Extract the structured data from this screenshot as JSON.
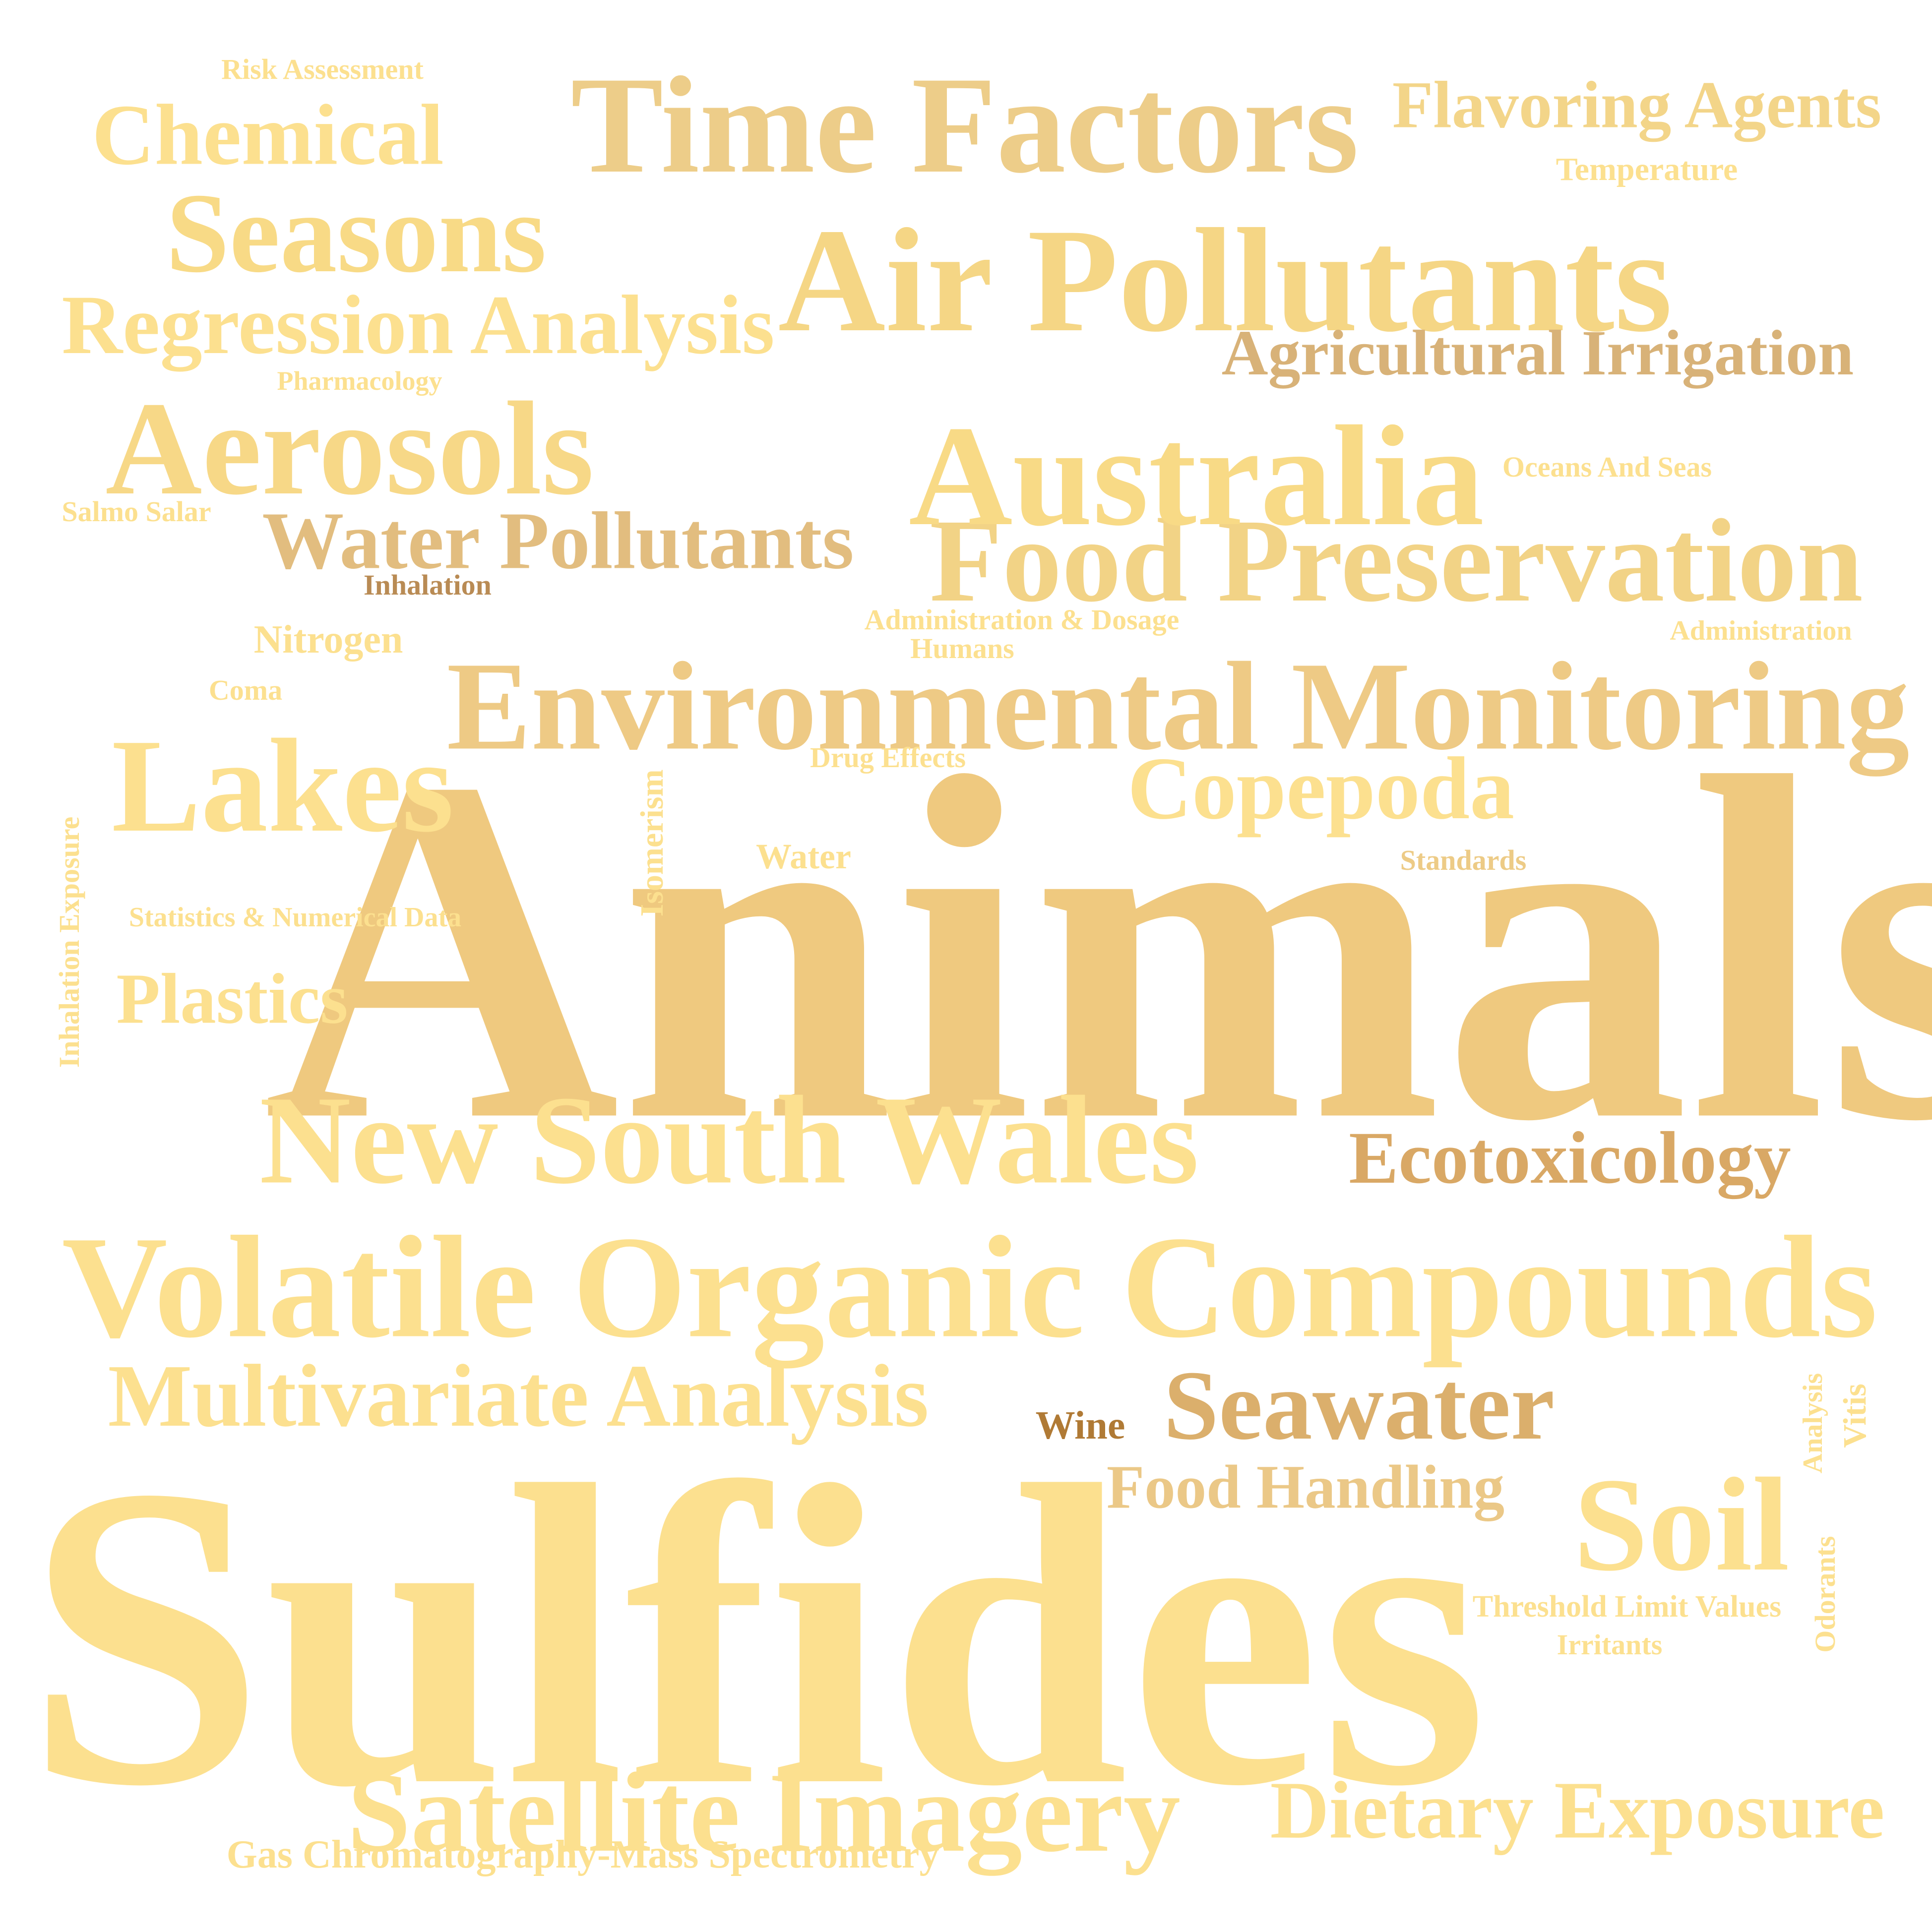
{
  "words": [
    {
      "id": "w-animals",
      "name": "word-animals",
      "text": "Animals",
      "color": "#EFC97F"
    },
    {
      "id": "w-sulfides",
      "name": "word-sulfides",
      "text": "Sulfides",
      "color": "#FCE08F"
    },
    {
      "id": "w-vol",
      "name": "word-volatile-organic-compounds",
      "text": "Volatile Organic Compounds",
      "color": "#FCE08F"
    },
    {
      "id": "w-env",
      "name": "word-environmental-monitoring",
      "text": "Environmental Monitoring",
      "color": "#EECA85"
    },
    {
      "id": "w-air",
      "name": "word-air-pollutants",
      "text": "Air Pollutants",
      "color": "#F5D685"
    },
    {
      "id": "w-time",
      "name": "word-time-factors",
      "text": "Time Factors",
      "color": "#EDCD89"
    },
    {
      "id": "w-nsw",
      "name": "word-new-south-wales",
      "text": "New South Wales",
      "color": "#FCE08F"
    },
    {
      "id": "w-food",
      "name": "word-food-preservation",
      "text": "Food Preservation",
      "color": "#F2D386"
    },
    {
      "id": "w-aust",
      "name": "word-australia",
      "text": "Australia",
      "color": "#F8DA86"
    },
    {
      "id": "w-aero",
      "name": "word-aerosols",
      "text": "Aerosols",
      "color": "#F7D887"
    },
    {
      "id": "w-sat",
      "name": "word-satellite-imagery",
      "text": "Satellite Imagery",
      "color": "#FCE08F"
    },
    {
      "id": "w-lakes",
      "name": "word-lakes",
      "text": "Lakes",
      "color": "#FCE08F"
    },
    {
      "id": "w-seasons",
      "name": "word-seasons",
      "text": "Seasons",
      "color": "#F8DA86"
    },
    {
      "id": "w-reg",
      "name": "word-regression-analysis",
      "text": "Regression Analysis",
      "color": "#FCE08F"
    },
    {
      "id": "w-multi",
      "name": "word-multivariate-analysis",
      "text": "Multivariate Analysis",
      "color": "#FCE08F"
    },
    {
      "id": "w-diet",
      "name": "word-dietary-exposure",
      "text": "Dietary Exposure",
      "color": "#FCE08F"
    },
    {
      "id": "w-soil",
      "name": "word-soil",
      "text": "Soil",
      "color": "#FCE08F"
    },
    {
      "id": "w-chem",
      "name": "word-chemical",
      "text": "Chemical",
      "color": "#FCE08F"
    },
    {
      "id": "w-flav",
      "name": "word-flavoring-agents",
      "text": "Flavoring Agents",
      "color": "#F3D589"
    },
    {
      "id": "w-agri",
      "name": "word-agricultural-irrigation",
      "text": "Agricultural Irrigation",
      "color": "#D8B278"
    },
    {
      "id": "w-water-poll",
      "name": "word-water-pollutants",
      "text": "Water Pollutants",
      "color": "#E2BD7F"
    },
    {
      "id": "w-cope",
      "name": "word-copepoda",
      "text": "Copepoda",
      "color": "#FCE08F"
    },
    {
      "id": "w-plastics",
      "name": "word-plastics",
      "text": "Plastics",
      "color": "#FCE08F"
    },
    {
      "id": "w-seawater",
      "name": "word-seawater",
      "text": "Seawater",
      "color": "#DBAF6C"
    },
    {
      "id": "w-ecotox",
      "name": "word-ecotoxicology",
      "text": "Ecotoxicology",
      "color": "#D9A865"
    },
    {
      "id": "w-foodhand",
      "name": "word-food-handling",
      "text": "Food Handling",
      "color": "#EBC887"
    },
    {
      "id": "w-gcms",
      "name": "word-gas-chromatography-mass-spectrometry",
      "text": "Gas Chromatography-Mass Spectrometry",
      "color": "#FCE08F"
    },
    {
      "id": "w-nitrogen",
      "name": "word-nitrogen",
      "text": "Nitrogen",
      "color": "#FCE08F"
    },
    {
      "id": "w-water",
      "name": "word-water",
      "text": "Water",
      "color": "#FCE08F"
    },
    {
      "id": "w-standards",
      "name": "word-standards",
      "text": "Standards",
      "color": "#EDCB86"
    },
    {
      "id": "w-risk",
      "name": "word-risk-assessment",
      "text": "Risk Assessment",
      "color": "#FCE08F"
    },
    {
      "id": "w-temp",
      "name": "word-temperature",
      "text": "Temperature",
      "color": "#FCE08F"
    },
    {
      "id": "w-pharm",
      "name": "word-pharmacology",
      "text": "Pharmacology",
      "color": "#FCE08F"
    },
    {
      "id": "w-oceans",
      "name": "word-oceans-and-seas",
      "text": "Oceans And Seas",
      "color": "#FCE08F"
    },
    {
      "id": "w-salmo",
      "name": "word-salmo-salar",
      "text": "Salmo Salar",
      "color": "#FCE08F"
    },
    {
      "id": "w-inhal",
      "name": "word-inhalation",
      "text": "Inhalation",
      "color": "#B98B54"
    },
    {
      "id": "w-admdose",
      "name": "word-administration-dosage",
      "text": "Administration & Dosage",
      "color": "#FCE08F"
    },
    {
      "id": "w-humans",
      "name": "word-humans",
      "text": "Humans",
      "color": "#FCE08F"
    },
    {
      "id": "w-admin",
      "name": "word-administration",
      "text": "Administration",
      "color": "#FCE08F"
    },
    {
      "id": "w-coma",
      "name": "word-coma",
      "text": "Coma",
      "color": "#FCE08F"
    },
    {
      "id": "w-drug",
      "name": "word-drug-effects",
      "text": "Drug Effects",
      "color": "#FCE08F"
    },
    {
      "id": "w-stats",
      "name": "word-statistics-numerical-data",
      "text": "Statistics & Numerical Data",
      "color": "#FCE08F"
    },
    {
      "id": "w-thresh",
      "name": "word-threshold-limit-values",
      "text": "Threshold Limit Values",
      "color": "#FCE08F"
    },
    {
      "id": "w-irr",
      "name": "word-irritants",
      "text": "Irritants",
      "color": "#FCE08F"
    },
    {
      "id": "w-wine",
      "name": "word-wine",
      "text": "Wine",
      "color": "#B07A35"
    },
    {
      "id": "w-inhexp",
      "name": "word-inhalation-exposure",
      "text": "Inhalation Exposure",
      "color": "#FCE08F",
      "vertical": true
    },
    {
      "id": "w-isom",
      "name": "word-isomerism",
      "text": "Isomerism",
      "color": "#FCE08F",
      "vertical": true
    },
    {
      "id": "w-analysis",
      "name": "word-analysis",
      "text": "Analysis",
      "color": "#FCE08F",
      "vertical": true
    },
    {
      "id": "w-vitis",
      "name": "word-vitis",
      "text": "Vitis",
      "color": "#FCE08F",
      "vertical": true
    },
    {
      "id": "w-odorants",
      "name": "word-odorants",
      "text": "Odorants",
      "color": "#FCE08F",
      "vertical": true
    }
  ]
}
